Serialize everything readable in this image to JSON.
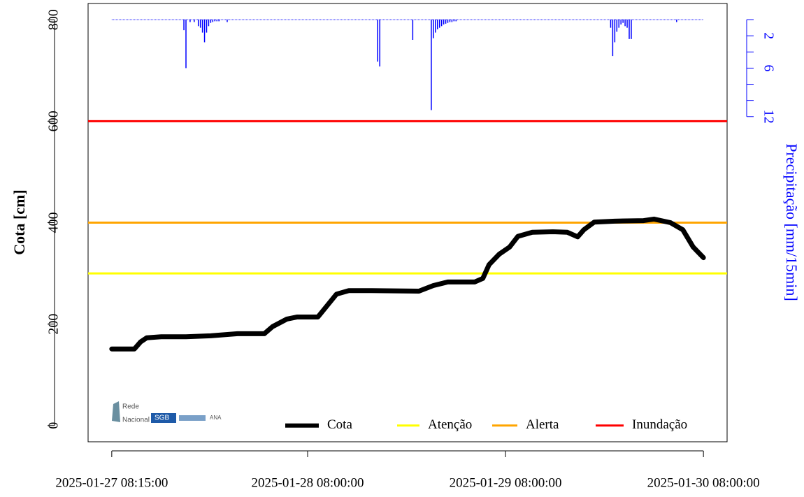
{
  "chart_data": {
    "type": "line",
    "ylabel": "Cota [cm]",
    "y2label": "Precipitação [mm/15min]",
    "xlim": [
      "2025-01-27 05:22:48",
      "2025-01-30 10:52:12"
    ],
    "xticks": [
      "2025-01-27 08:15:00",
      "2025-01-28 08:00:00",
      "2025-01-29 08:00:00",
      "2025-01-30 08:00:00"
    ],
    "ylim": [
      -32,
      832
    ],
    "yticks": [
      0,
      200,
      400,
      600,
      800
    ],
    "y2lim": [
      52.26,
      -2
    ],
    "y2ticks": [
      2,
      6,
      12
    ],
    "y2minor_ticks": [
      0,
      4,
      8,
      10
    ],
    "legend": "bottom",
    "series": [
      {
        "name": "Cota",
        "color": "#000000",
        "x": [
          "2025-01-27 08:15:00",
          "2025-01-27 11:00:00",
          "2025-01-27 11:45:00",
          "2025-01-27 12:30:00",
          "2025-01-27 14:15:00",
          "2025-01-27 17:15:00",
          "2025-01-27 20:15:00",
          "2025-01-27 23:30:00",
          "2025-01-28 02:45:00",
          "2025-01-28 03:45:00",
          "2025-01-28 05:30:00",
          "2025-01-28 06:45:00",
          "2025-01-28 09:15:00",
          "2025-01-28 10:15:00",
          "2025-01-28 11:30:00",
          "2025-01-28 13:00:00",
          "2025-01-28 15:45:00",
          "2025-01-28 21:30:00",
          "2025-01-28 23:15:00",
          "2025-01-29 01:00:00",
          "2025-01-29 04:15:00",
          "2025-01-29 05:15:00",
          "2025-01-29 06:00:00",
          "2025-01-29 07:15:00",
          "2025-01-29 08:30:00",
          "2025-01-29 09:30:00",
          "2025-01-29 11:15:00",
          "2025-01-29 13:45:00",
          "2025-01-29 15:30:00",
          "2025-01-29 16:45:00",
          "2025-01-29 17:30:00",
          "2025-01-29 18:45:00",
          "2025-01-29 21:15:00",
          "2025-01-30 00:45:00",
          "2025-01-30 02:00:00",
          "2025-01-30 04:00:00",
          "2025-01-30 05:30:00",
          "2025-01-30 06:45:00",
          "2025-01-30 08:00:00"
        ],
        "values": [
          151,
          151,
          165,
          173,
          175,
          175,
          177,
          181,
          181,
          195,
          210,
          214,
          214,
          234,
          259,
          266,
          266,
          265,
          276,
          283,
          283,
          290,
          317,
          338,
          352,
          373,
          381,
          382,
          381,
          372,
          386,
          401,
          403,
          404,
          407,
          400,
          386,
          352,
          331
        ]
      },
      {
        "name": "Precipitação",
        "color": "#0000ff",
        "axis": "y2",
        "type": "bar",
        "x": [
          "2025-01-27 17:00:00",
          "2025-01-27 17:15:00",
          "2025-01-27 17:45:00",
          "2025-01-27 18:15:00",
          "2025-01-27 18:45:00",
          "2025-01-27 19:00:00",
          "2025-01-27 19:15:00",
          "2025-01-27 19:30:00",
          "2025-01-27 19:45:00",
          "2025-01-27 20:00:00",
          "2025-01-27 20:15:00",
          "2025-01-27 20:30:00",
          "2025-01-27 20:45:00",
          "2025-01-27 21:00:00",
          "2025-01-27 21:15:00",
          "2025-01-27 22:15:00",
          "2025-01-28 16:30:00",
          "2025-01-28 16:45:00",
          "2025-01-28 20:45:00",
          "2025-01-28 23:00:00",
          "2025-01-28 23:15:00",
          "2025-01-28 23:30:00",
          "2025-01-28 23:45:00",
          "2025-01-29 00:00:00",
          "2025-01-29 00:15:00",
          "2025-01-29 00:30:00",
          "2025-01-29 00:45:00",
          "2025-01-29 01:00:00",
          "2025-01-29 01:15:00",
          "2025-01-29 01:30:00",
          "2025-01-29 01:45:00",
          "2025-01-29 02:00:00",
          "2025-01-29 20:45:00",
          "2025-01-29 21:00:00",
          "2025-01-29 21:15:00",
          "2025-01-29 21:30:00",
          "2025-01-29 21:45:00",
          "2025-01-29 22:00:00",
          "2025-01-29 22:15:00",
          "2025-01-29 22:30:00",
          "2025-01-29 22:45:00",
          "2025-01-29 23:00:00",
          "2025-01-29 23:15:00",
          "2025-01-30 04:45:00"
        ],
        "values": [
          1.3,
          6.0,
          0.3,
          0.3,
          0.8,
          1.0,
          1.6,
          2.8,
          1.6,
          0.8,
          0.4,
          0.3,
          0.2,
          0.2,
          0.2,
          0.3,
          5.2,
          5.8,
          2.5,
          11.2,
          2.3,
          1.6,
          1.2,
          1.0,
          0.8,
          0.6,
          0.5,
          0.4,
          0.3,
          0.3,
          0.2,
          0.2,
          1.0,
          4.5,
          2.8,
          1.5,
          1.0,
          0.6,
          0.4,
          0.8,
          1.0,
          2.4,
          2.4,
          0.3
        ]
      }
    ],
    "hlines": [
      {
        "name": "Atenção",
        "color": "#ffff00",
        "value": 300
      },
      {
        "name": "Alerta",
        "color": "#ffa500",
        "value": 400
      },
      {
        "name": "Inundação",
        "color": "#ff0000",
        "value": 600
      }
    ],
    "logos": [
      "Rede",
      "Nacional",
      "SGB",
      "ANA"
    ]
  }
}
